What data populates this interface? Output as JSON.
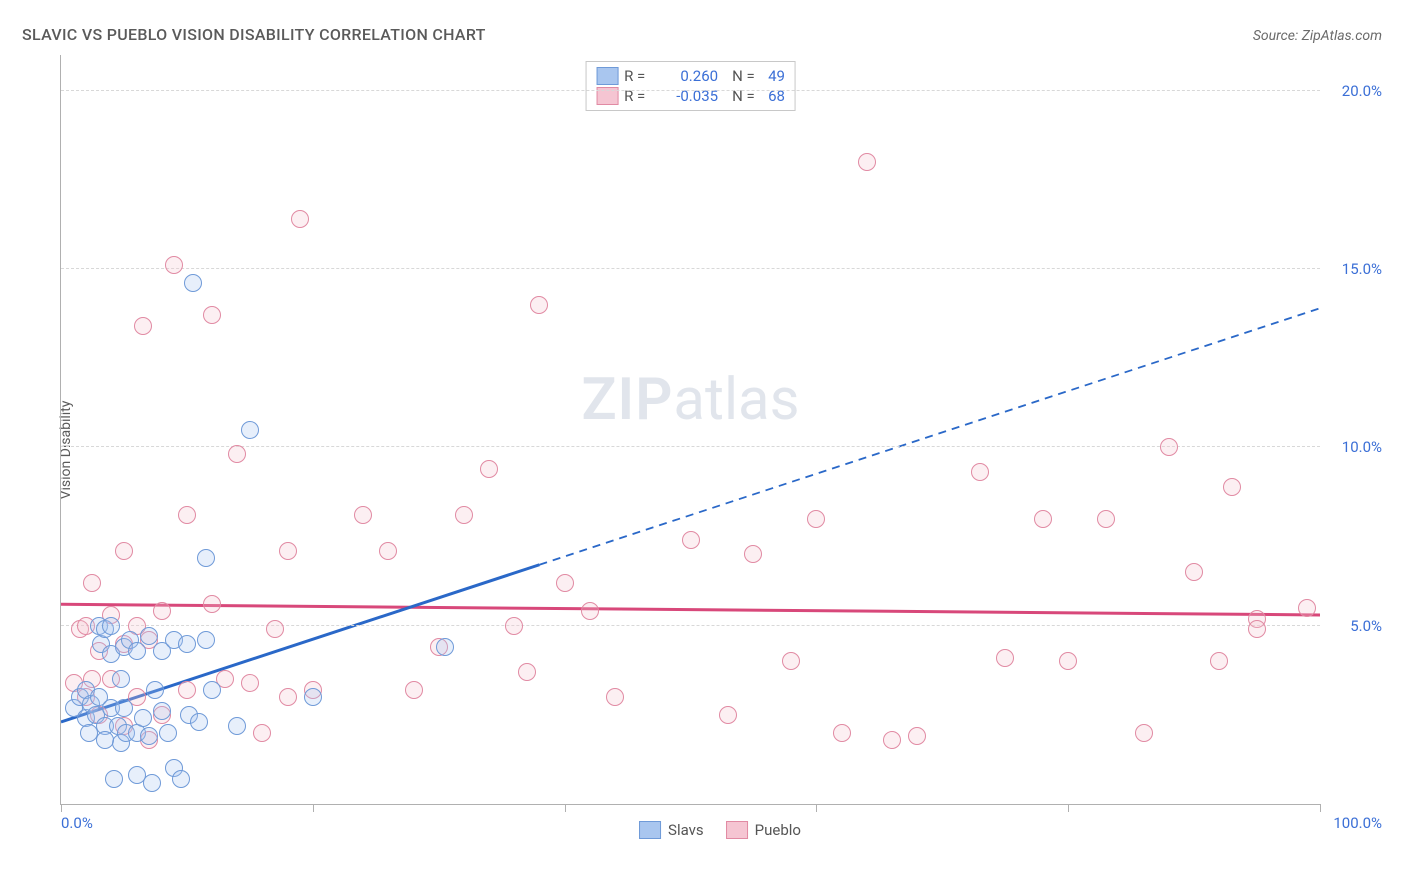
{
  "title": "SLAVIC VS PUEBLO VISION DISABILITY CORRELATION CHART",
  "source": "Source: ZipAtlas.com",
  "watermark_zip": "ZIP",
  "watermark_atlas": "atlas",
  "ylabel": "Vision Disability",
  "chart": {
    "type": "scatter",
    "xlim": [
      0,
      100
    ],
    "ylim": [
      0,
      21
    ],
    "x_ticks": [
      0,
      20,
      40,
      60,
      80,
      100
    ],
    "y_gridlines": [
      5,
      10,
      15,
      20
    ],
    "y_tick_labels": {
      "5": "5.0%",
      "10": "10.0%",
      "15": "15.0%",
      "20": "20.0%"
    },
    "x_tick_labels": {
      "0": "0.0%",
      "100": "100.0%"
    },
    "background_color": "#ffffff",
    "grid_color": "#d8d8d8",
    "axis_color": "#b0b0b0",
    "tick_label_color": "#3b6fd6",
    "marker_radius": 9,
    "marker_border_width": 1.5,
    "marker_fill_opacity": 0.28
  },
  "series": {
    "slavs": {
      "label": "Slavs",
      "fill": "#a9c6ef",
      "stroke": "#6f9ad8",
      "line_color": "#2a68c8",
      "line_width": 3,
      "dash_after_x": 38,
      "trend_y_at_x0": 2.3,
      "trend_y_at_x100": 13.9,
      "R_label": "R =",
      "R": "0.260",
      "N_label": "N =",
      "N": "49",
      "points": [
        [
          1,
          2.7
        ],
        [
          1.5,
          3.0
        ],
        [
          2,
          2.4
        ],
        [
          2,
          3.2
        ],
        [
          2.2,
          2.0
        ],
        [
          2.4,
          2.8
        ],
        [
          2.8,
          2.5
        ],
        [
          3,
          3.0
        ],
        [
          3,
          5.0
        ],
        [
          3.2,
          4.5
        ],
        [
          3.5,
          2.2
        ],
        [
          3.5,
          4.9
        ],
        [
          4,
          2.7
        ],
        [
          4,
          4.2
        ],
        [
          4,
          5.0
        ],
        [
          4.2,
          0.7
        ],
        [
          4.5,
          2.2
        ],
        [
          4.8,
          1.7
        ],
        [
          5,
          2.7
        ],
        [
          5,
          4.4
        ],
        [
          5.2,
          2.0
        ],
        [
          5.5,
          4.6
        ],
        [
          6,
          0.8
        ],
        [
          6,
          2.0
        ],
        [
          6,
          4.3
        ],
        [
          6.5,
          2.4
        ],
        [
          7,
          1.9
        ],
        [
          7,
          4.7
        ],
        [
          7.2,
          0.6
        ],
        [
          7.5,
          3.2
        ],
        [
          8,
          2.6
        ],
        [
          8,
          4.3
        ],
        [
          8.5,
          2.0
        ],
        [
          9,
          1.0
        ],
        [
          9,
          4.6
        ],
        [
          9.5,
          0.7
        ],
        [
          10,
          4.5
        ],
        [
          10.2,
          2.5
        ],
        [
          10.5,
          14.6
        ],
        [
          11,
          2.3
        ],
        [
          11.5,
          4.6
        ],
        [
          11.5,
          6.9
        ],
        [
          12,
          3.2
        ],
        [
          14,
          2.2
        ],
        [
          15,
          10.5
        ],
        [
          20,
          3.0
        ],
        [
          3.5,
          1.8
        ],
        [
          4.8,
          3.5
        ],
        [
          30.5,
          4.4
        ]
      ]
    },
    "pueblo": {
      "label": "Pueblo",
      "fill": "#f5c5d2",
      "stroke": "#e18aa3",
      "line_color": "#d8487a",
      "line_width": 3,
      "trend_y_at_x0": 5.6,
      "trend_y_at_x100": 5.3,
      "R_label": "R =",
      "R": "-0.035",
      "N_label": "N =",
      "N": "68",
      "points": [
        [
          1,
          3.4
        ],
        [
          1.5,
          4.9
        ],
        [
          2,
          3.0
        ],
        [
          2,
          5.0
        ],
        [
          2.5,
          3.5
        ],
        [
          2.5,
          6.2
        ],
        [
          3,
          2.5
        ],
        [
          3,
          4.3
        ],
        [
          4,
          3.5
        ],
        [
          4,
          5.3
        ],
        [
          5,
          2.2
        ],
        [
          5,
          4.5
        ],
        [
          5,
          7.1
        ],
        [
          6,
          3.0
        ],
        [
          6,
          5.0
        ],
        [
          6.5,
          13.4
        ],
        [
          7,
          1.8
        ],
        [
          7,
          4.6
        ],
        [
          8,
          2.5
        ],
        [
          8,
          5.4
        ],
        [
          9,
          15.1
        ],
        [
          10,
          3.2
        ],
        [
          10,
          8.1
        ],
        [
          12,
          5.6
        ],
        [
          12,
          13.7
        ],
        [
          13,
          3.5
        ],
        [
          14,
          9.8
        ],
        [
          15,
          3.4
        ],
        [
          16,
          2.0
        ],
        [
          17,
          4.9
        ],
        [
          18,
          3.0
        ],
        [
          18,
          7.1
        ],
        [
          19,
          16.4
        ],
        [
          20,
          3.2
        ],
        [
          24,
          8.1
        ],
        [
          26,
          7.1
        ],
        [
          28,
          3.2
        ],
        [
          30,
          4.4
        ],
        [
          32,
          8.1
        ],
        [
          34,
          9.4
        ],
        [
          36,
          5.0
        ],
        [
          37,
          3.7
        ],
        [
          38,
          14.0
        ],
        [
          40,
          6.2
        ],
        [
          42,
          5.4
        ],
        [
          44,
          3.0
        ],
        [
          50,
          7.4
        ],
        [
          53,
          2.5
        ],
        [
          55,
          7.0
        ],
        [
          58,
          4.0
        ],
        [
          60,
          8.0
        ],
        [
          62,
          2.0
        ],
        [
          64,
          18.0
        ],
        [
          66,
          1.8
        ],
        [
          68,
          1.9
        ],
        [
          73,
          9.3
        ],
        [
          75,
          4.1
        ],
        [
          78,
          8.0
        ],
        [
          80,
          4.0
        ],
        [
          83,
          8.0
        ],
        [
          86,
          2.0
        ],
        [
          88,
          10.0
        ],
        [
          90,
          6.5
        ],
        [
          92,
          4.0
        ],
        [
          93,
          8.9
        ],
        [
          95,
          5.2
        ],
        [
          95,
          4.9
        ],
        [
          99,
          5.5
        ]
      ]
    }
  }
}
